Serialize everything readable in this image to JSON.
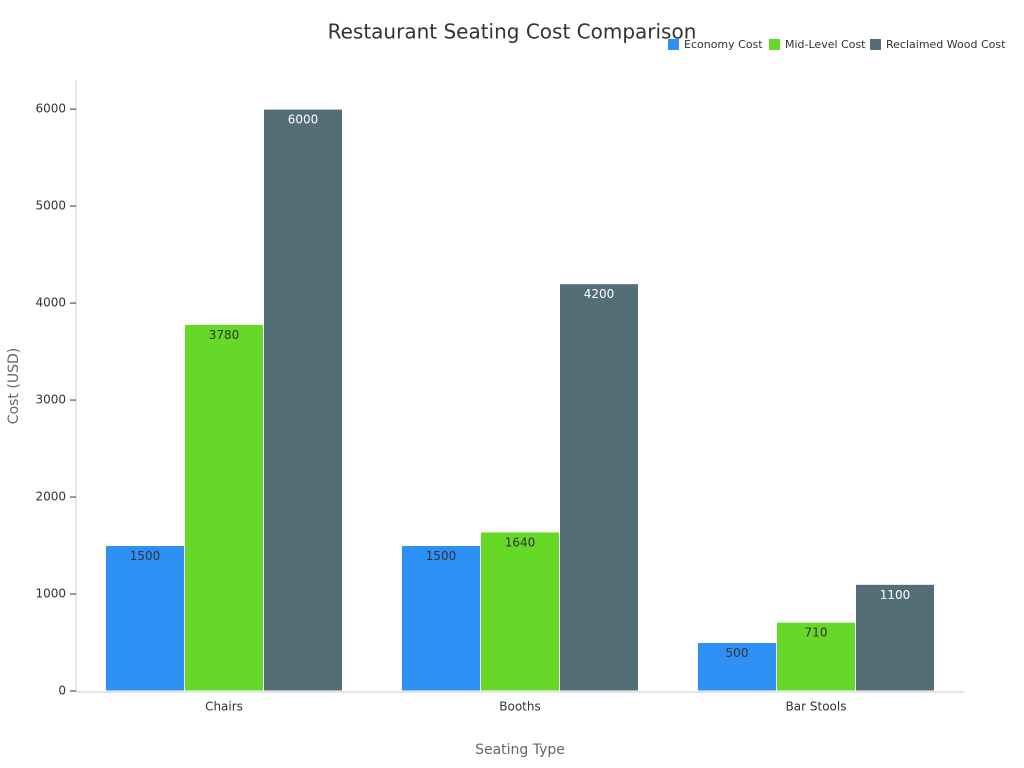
{
  "chart_data": {
    "type": "bar",
    "title": "Restaurant Seating Cost Comparison",
    "x_label": "Seating Type",
    "y_label": "Cost (USD)",
    "categories": [
      "Chairs",
      "Booths",
      "Bar Stools"
    ],
    "series": [
      {
        "name": "Economy Cost",
        "color": "#2e8ff5",
        "values": [
          1500,
          1500,
          500
        ]
      },
      {
        "name": "Mid-Level Cost",
        "color": "#66d928",
        "values": [
          3780,
          1640,
          710
        ]
      },
      {
        "name": "Reclaimed Wood Cost",
        "color": "#546e78",
        "values": [
          6000,
          4200,
          1100
        ]
      }
    ],
    "ylim": [
      0,
      6300
    ],
    "yticks": [
      0,
      1000,
      2000,
      3000,
      4000,
      5000,
      6000
    ],
    "grid": false,
    "legend": "top-right"
  }
}
